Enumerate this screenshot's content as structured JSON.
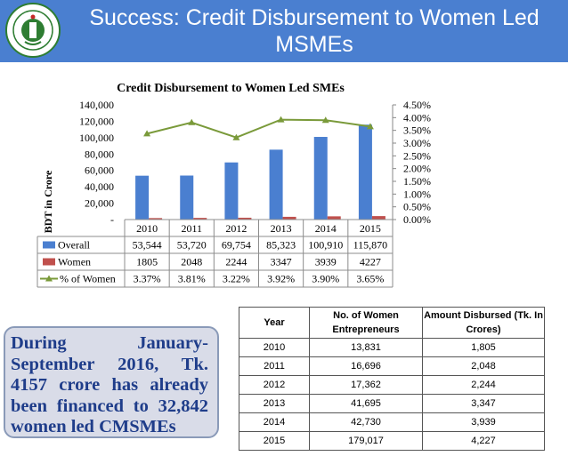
{
  "slide": {
    "title": "Success: Credit Disbursement to Women Led MSMEs"
  },
  "callout": {
    "text": "During January-September 2016, Tk. 4157 crore has already been financed to 32,842 women led CMSMEs"
  },
  "colors": {
    "header": "#4a7fd0",
    "overall": "#4a7fd0",
    "women": "#c0504d",
    "pct_line": "#7a9a3a",
    "callout_text": "#1f3d8a"
  },
  "chart_data": {
    "type": "bar",
    "title": "Credit Disbursement to Women Led SMEs",
    "ylabel": "BDT in Crore",
    "categories": [
      "2010",
      "2011",
      "2012",
      "2013",
      "2014",
      "2015"
    ],
    "ylim": [
      0,
      140000
    ],
    "yticks": [
      "-",
      "20,000",
      "40,000",
      "60,000",
      "80,000",
      "100,000",
      "120,000",
      "140,000"
    ],
    "y2lim": [
      0,
      4.5
    ],
    "y2ticks": [
      "0.00%",
      "0.50%",
      "1.00%",
      "1.50%",
      "2.00%",
      "2.50%",
      "3.00%",
      "3.50%",
      "4.00%",
      "4.50%"
    ],
    "grid": false,
    "legend": "data-table",
    "series": [
      {
        "name": "Overall",
        "type": "bar",
        "axis": "left",
        "values": [
          53544,
          53720,
          69754,
          85323,
          100910,
          115870
        ],
        "labels": [
          "53,544",
          "53,720",
          "69,754",
          "85,323",
          "100,910",
          "115,870"
        ]
      },
      {
        "name": "Women",
        "type": "bar",
        "axis": "left",
        "values": [
          1805,
          2048,
          2244,
          3347,
          3939,
          4227
        ],
        "labels": [
          "1805",
          "2048",
          "2244",
          "3347",
          "3939",
          "4227"
        ]
      },
      {
        "name": "% of Women",
        "type": "line",
        "axis": "right",
        "values": [
          3.37,
          3.81,
          3.22,
          3.92,
          3.9,
          3.65
        ],
        "labels": [
          "3.37%",
          "3.81%",
          "3.22%",
          "3.92%",
          "3.90%",
          "3.65%"
        ]
      }
    ]
  },
  "table": {
    "headers": [
      "Year",
      "No. of Women Entrepreneurs",
      "Amount Disbursed (Tk. In Crores)"
    ],
    "rows": [
      [
        "2010",
        "13,831",
        "1,805"
      ],
      [
        "2011",
        "16,696",
        "2,048"
      ],
      [
        "2012",
        "17,362",
        "2,244"
      ],
      [
        "2013",
        "41,695",
        "3,347"
      ],
      [
        "2014",
        "42,730",
        "3,939"
      ],
      [
        "2015",
        "179,017",
        "4,227"
      ]
    ]
  }
}
